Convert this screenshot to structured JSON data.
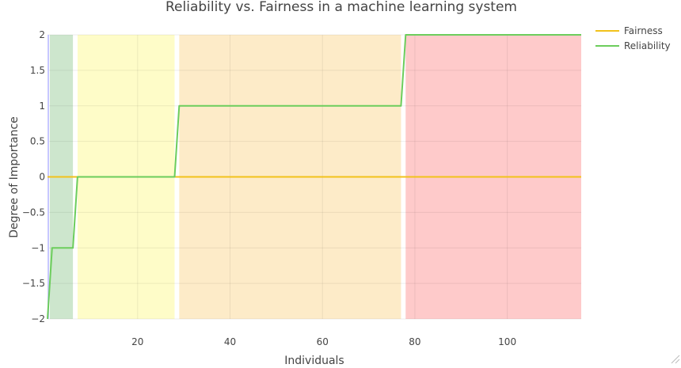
{
  "chart_data": {
    "type": "line",
    "title": "Reliability vs. Fairness in a machine learning system",
    "xlabel": "Individuals",
    "ylabel": "Degree of Importance",
    "xlim": [
      0.5,
      116
    ],
    "ylim": [
      -2,
      2
    ],
    "x_ticks": [
      20,
      40,
      60,
      80,
      100
    ],
    "y_ticks": [
      -2,
      -1.5,
      -1,
      -0.5,
      0,
      0.5,
      1,
      1.5,
      2
    ],
    "x_tick_labels": [
      "20",
      "40",
      "60",
      "80",
      "100"
    ],
    "y_tick_labels": [
      "−2",
      "−1.5",
      "−1",
      "−0.5",
      "0",
      "0.5",
      "1",
      "1.5",
      "2"
    ],
    "grid": true,
    "legend_position": "top-right",
    "bands": [
      {
        "x0": 1,
        "x1": 6,
        "color": "#cde6cd"
      },
      {
        "x0": 7,
        "x1": 28,
        "color": "#fefcc8"
      },
      {
        "x0": 29,
        "x1": 77,
        "color": "#fdebc8"
      },
      {
        "x0": 78,
        "x1": 116,
        "color": "#fecaca"
      }
    ],
    "series": [
      {
        "name": "Fairness",
        "color": "#f2c21b",
        "x": [
          0.5,
          116
        ],
        "y": [
          0,
          0
        ]
      },
      {
        "name": "Reliability",
        "color": "#6ccd5c",
        "x": [
          0.5,
          1.5,
          6,
          7,
          28,
          29,
          77,
          78,
          116
        ],
        "y": [
          -2,
          -1,
          -1,
          0,
          0,
          1,
          1,
          2,
          2
        ]
      }
    ]
  }
}
